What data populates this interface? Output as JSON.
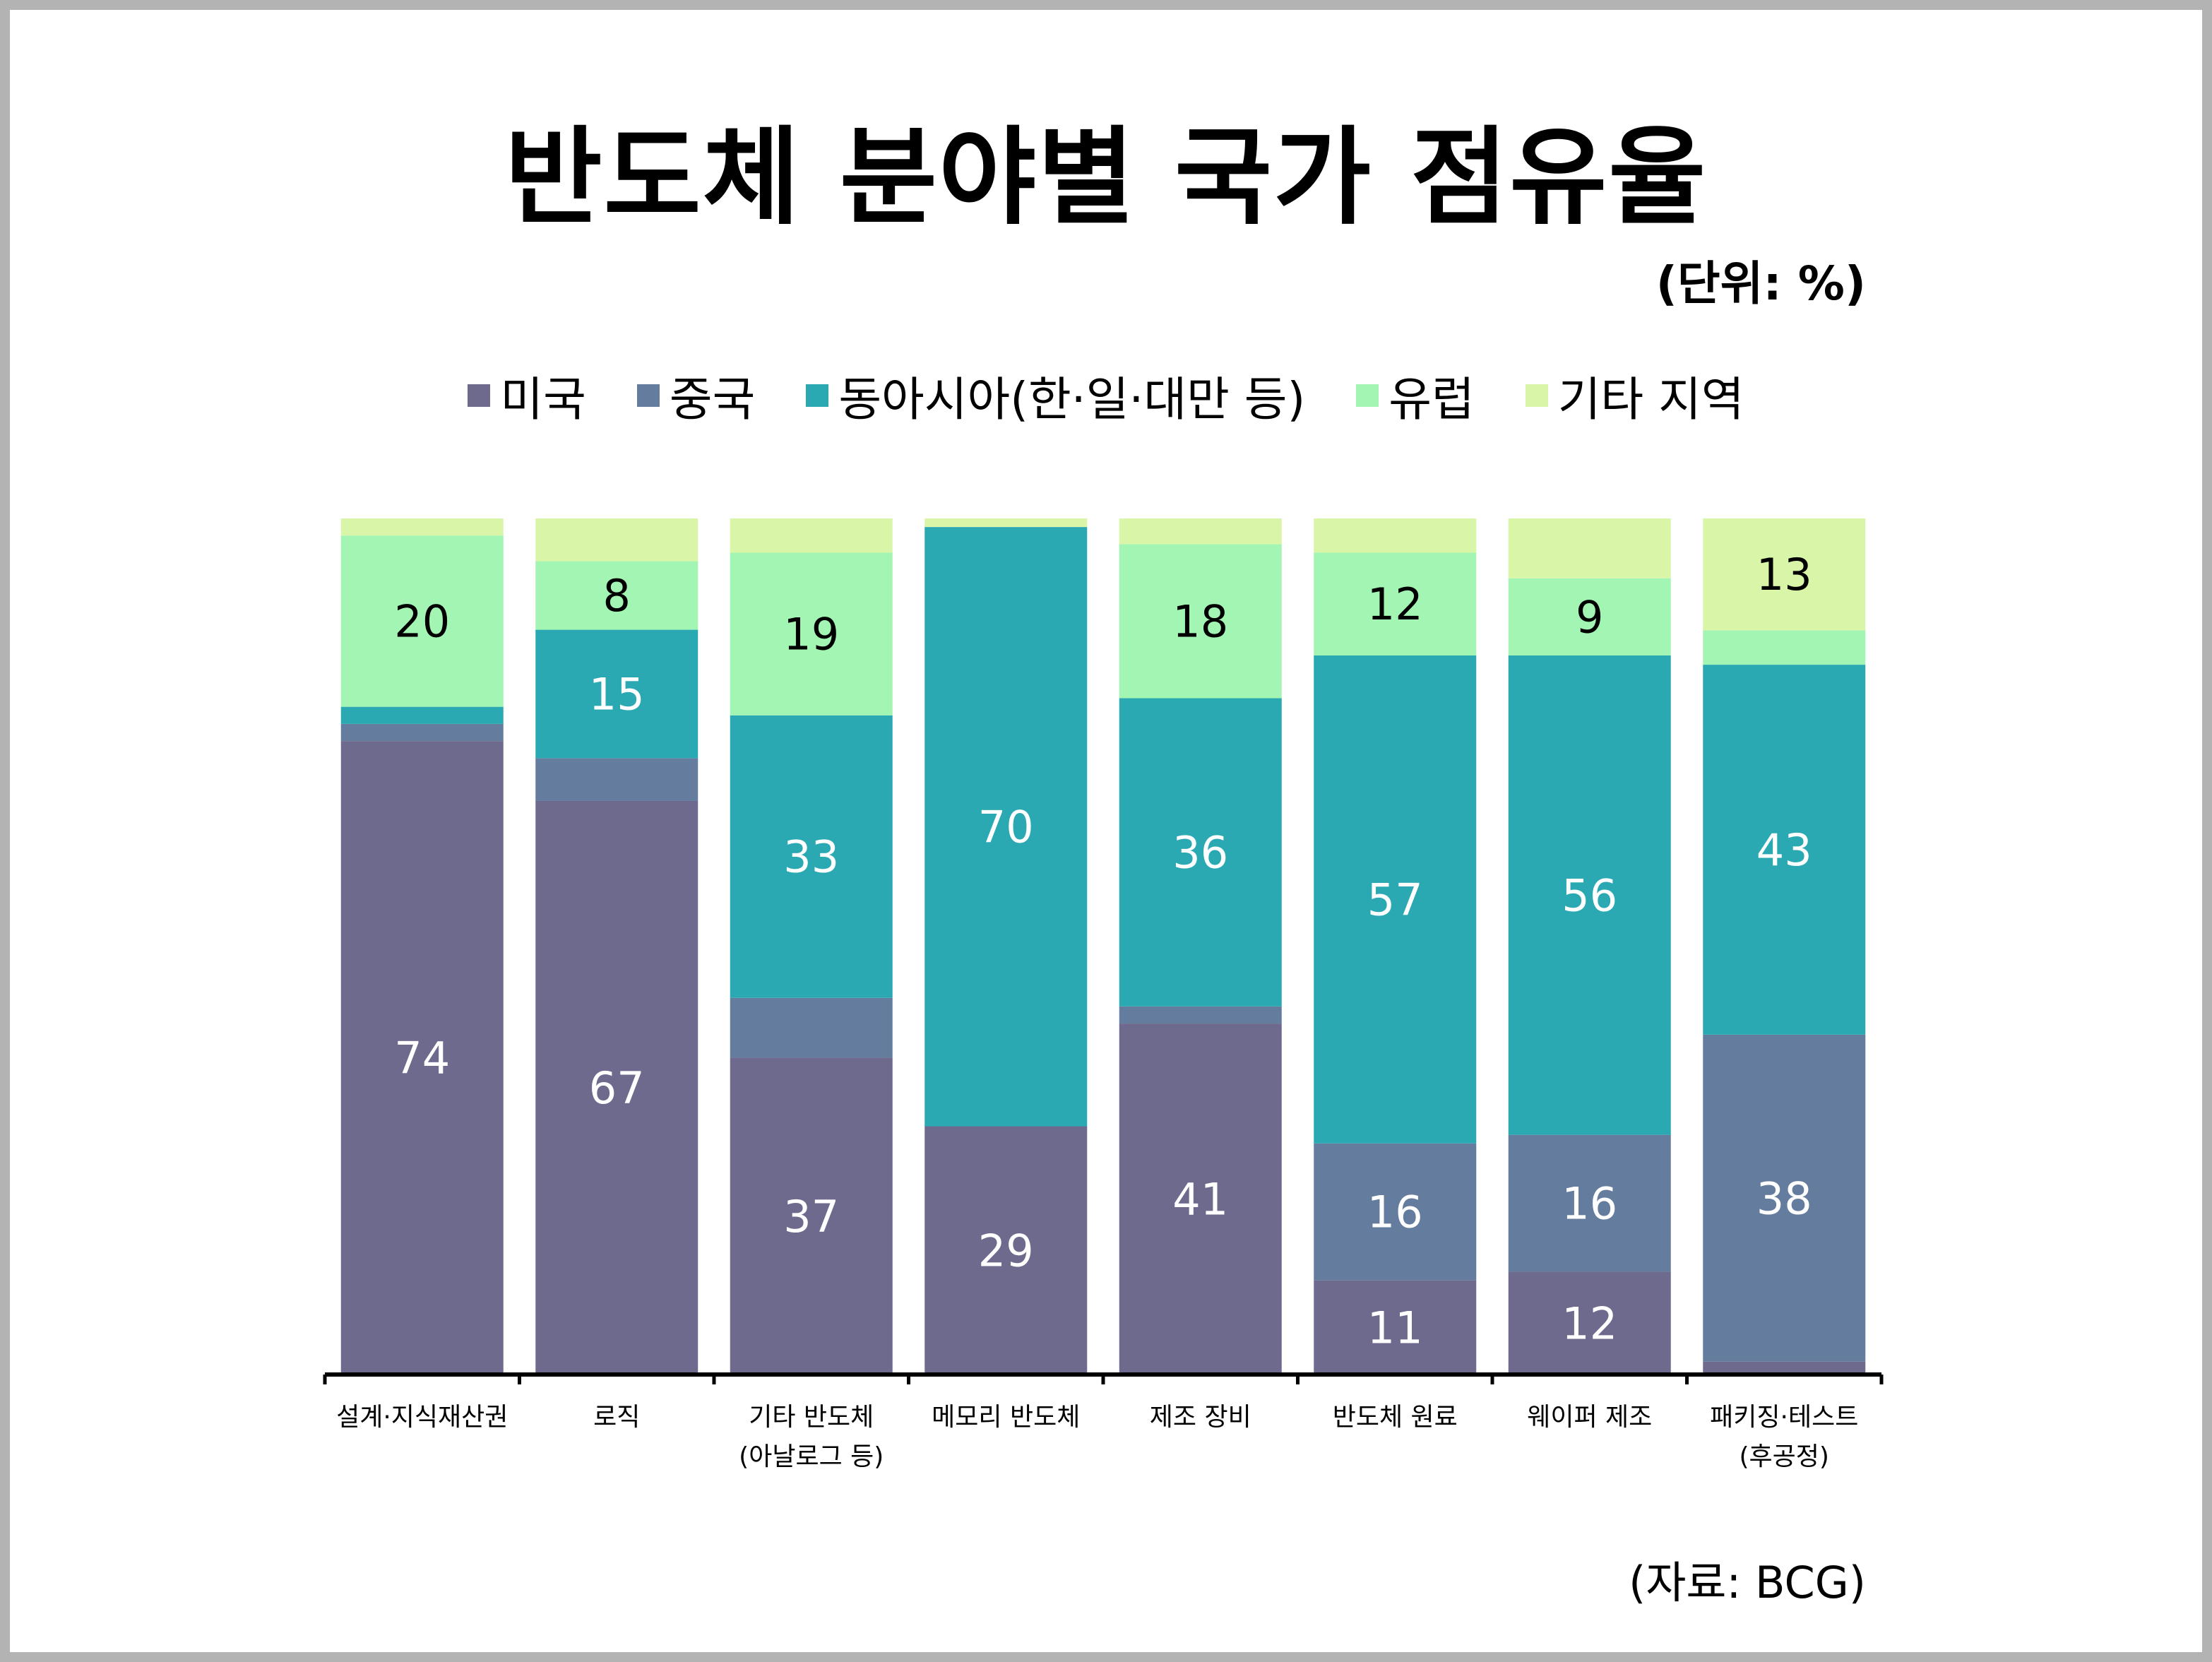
{
  "chart_data": {
    "type": "bar",
    "stacked": true,
    "title": "반도체 분야별 국가 점유율",
    "unit_note": "(단위: %)",
    "source_note": "(자료: BCG)",
    "ylim": [
      0,
      100
    ],
    "grid": false,
    "legend_position": "top",
    "categories": [
      [
        "설계·지식재산권"
      ],
      [
        "로직"
      ],
      [
        "기타 반도체",
        "(아날로그 등)"
      ],
      [
        "메모리 반도체"
      ],
      [
        "제조 장비"
      ],
      [
        "반도체 원료"
      ],
      [
        "웨이퍼 제조"
      ],
      [
        "패키징·테스트",
        "(후공정)"
      ]
    ],
    "series": [
      {
        "name": "미국",
        "color": "#6e6a8e",
        "label_color": "#ffffff",
        "values": [
          74,
          67,
          37,
          29,
          41,
          11,
          12,
          1.5
        ],
        "labels": [
          "74",
          "67",
          "37",
          "29",
          "41",
          "11",
          "12",
          ""
        ]
      },
      {
        "name": "중국",
        "color": "#647c9e",
        "label_color": "#ffffff",
        "values": [
          2,
          5,
          7,
          0,
          2,
          16,
          16,
          38
        ],
        "labels": [
          "",
          "",
          "",
          "",
          "",
          "16",
          "16",
          "38"
        ]
      },
      {
        "name": "동아시아(한·일·대만 등)",
        "color": "#2aa9b3",
        "label_color": "#ffffff",
        "values": [
          2,
          15,
          33,
          70,
          36,
          57,
          56,
          43
        ],
        "labels": [
          "",
          "15",
          "33",
          "70",
          "36",
          "57",
          "56",
          "43"
        ]
      },
      {
        "name": "유럽",
        "color": "#a3f5b4",
        "label_color": "#000000",
        "values": [
          20,
          8,
          19,
          0,
          18,
          12,
          9,
          4
        ],
        "labels": [
          "20",
          "8",
          "19",
          "",
          "18",
          "12",
          "9",
          ""
        ]
      },
      {
        "name": "기타 지역",
        "color": "#d8f5a8",
        "label_color": "#000000",
        "values": [
          2,
          5,
          4,
          1,
          3,
          4,
          7,
          13
        ],
        "labels": [
          "",
          "",
          "",
          "",
          "",
          "",
          "",
          "13"
        ]
      }
    ]
  }
}
